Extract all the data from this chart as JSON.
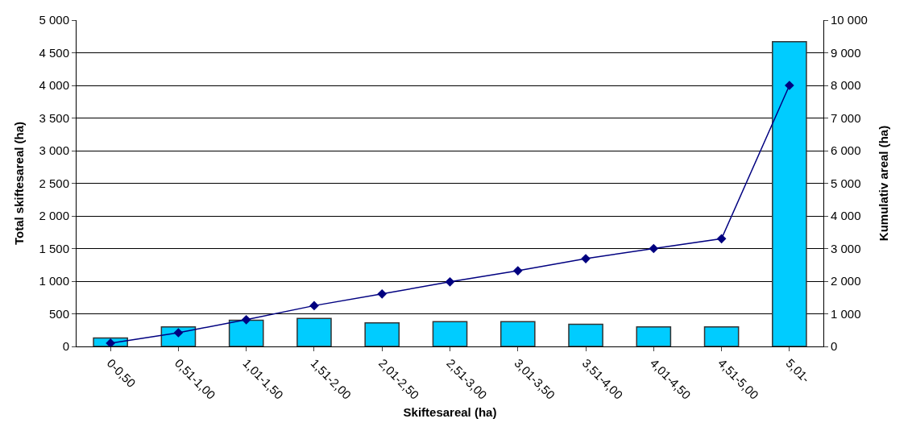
{
  "chart_data": {
    "type": "bar",
    "xlabel": "Skiftesareal (ha)",
    "ylabel": "Total skiftesareal (ha)",
    "y2label": "Kumulativ areal (ha)",
    "categories": [
      "0-0,50",
      "0,51-1,00",
      "1,01-1,50",
      "1,51-2,00",
      "2,01-2,50",
      "2,51-3,00",
      "3,01-3,50",
      "3,51-4,00",
      "4,01-4,50",
      "4,51-5,00",
      "5,01-"
    ],
    "series": [
      {
        "color": "#00ccff",
        "values": [
          130,
          300,
          400,
          430,
          360,
          380,
          380,
          340,
          300,
          300,
          4670
        ]
      },
      {
        "type": "line",
        "axis": "y2",
        "color": "#000080",
        "marker": "diamond",
        "line_style": "solid",
        "values": [
          100,
          420,
          820,
          1250,
          1610,
          1980,
          2320,
          2690,
          3000,
          3300,
          8000
        ]
      }
    ],
    "ylim": [
      0,
      5000
    ],
    "yticks": [
      {
        "value": 0,
        "label": "0"
      },
      {
        "value": 500,
        "label": "500"
      },
      {
        "value": 1000,
        "label": "1 000"
      },
      {
        "value": 1500,
        "label": "1 500"
      },
      {
        "value": 2000,
        "label": "2 000"
      },
      {
        "value": 2500,
        "label": "2 500"
      },
      {
        "value": 3000,
        "label": "3 000"
      },
      {
        "value": 3500,
        "label": "3 500"
      },
      {
        "value": 4000,
        "label": "4 000"
      },
      {
        "value": 4500,
        "label": "4 500"
      },
      {
        "value": 5000,
        "label": "5 000"
      }
    ],
    "y2lim": [
      0,
      10000
    ],
    "y2ticks": [
      {
        "value": 0,
        "label": "0"
      },
      {
        "value": 1000,
        "label": "1 000"
      },
      {
        "value": 2000,
        "label": "2 000"
      },
      {
        "value": 3000,
        "label": "3 000"
      },
      {
        "value": 4000,
        "label": "4 000"
      },
      {
        "value": 5000,
        "label": "5 000"
      },
      {
        "value": 6000,
        "label": "6 000"
      },
      {
        "value": 7000,
        "label": "7 000"
      },
      {
        "value": 8000,
        "label": "8 000"
      },
      {
        "value": 9000,
        "label": "9 000"
      },
      {
        "value": 10000,
        "label": "10 000"
      }
    ],
    "grid": "y"
  }
}
